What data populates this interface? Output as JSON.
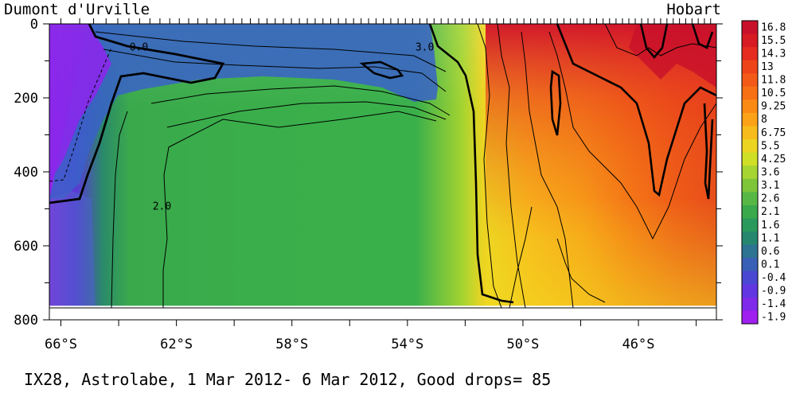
{
  "chart_data": {
    "type": "heatmap",
    "title": "",
    "station_left": "Dumont d'Urville",
    "station_right": "Hobart",
    "caption": "IX28, Astrolabe,  1 Mar 2012- 6 Mar 2012, Good drops= 85",
    "x_ticks": [
      "66°S",
      "62°S",
      "58°S",
      "54°S",
      "50°S",
      "46°S"
    ],
    "x_tick_values": [
      -66,
      -62,
      -58,
      -54,
      -50,
      -46
    ],
    "xlim": [
      -66.4,
      -43.3
    ],
    "y_ticks": [
      "0",
      "200",
      "400",
      "600",
      "800"
    ],
    "y_tick_values": [
      0,
      200,
      400,
      600,
      800
    ],
    "ylim": [
      0,
      800
    ],
    "y_reversed": true,
    "colorbar_labels": [
      "16.8",
      "15.5",
      "14.3",
      "13",
      "11.8",
      "10.5",
      "9.25",
      "8",
      "6.75",
      "5.5",
      "4.25",
      "3.6",
      "3.1",
      "2.6",
      "2.1",
      "1.6",
      "1.1",
      "0.6",
      "0.1",
      "-0.4",
      "-0.9",
      "-1.4",
      "-1.9"
    ],
    "colorbar_colors": [
      "#c8102a",
      "#d81a22",
      "#e52c1e",
      "#ee441a",
      "#f45a17",
      "#f87014",
      "#fb8a14",
      "#fca218",
      "#f7bb1c",
      "#ecd422",
      "#cfdf26",
      "#a6d430",
      "#7ec53a",
      "#58b845",
      "#3aa94c",
      "#2a9a5c",
      "#26876f",
      "#2d7392",
      "#3a5fb6",
      "#4a48d2",
      "#6236e0",
      "#7e2ae8",
      "#a020f0"
    ],
    "contour_labels": [
      "0.0",
      "3.0",
      "2.0"
    ],
    "contour_label_positions": [
      {
        "lon": -63.3,
        "depth": 115
      },
      {
        "lon": -53.4,
        "depth": 115
      },
      {
        "lon": -62.5,
        "depth": 545
      }
    ],
    "max_data_depth": 762,
    "drops": 85
  }
}
